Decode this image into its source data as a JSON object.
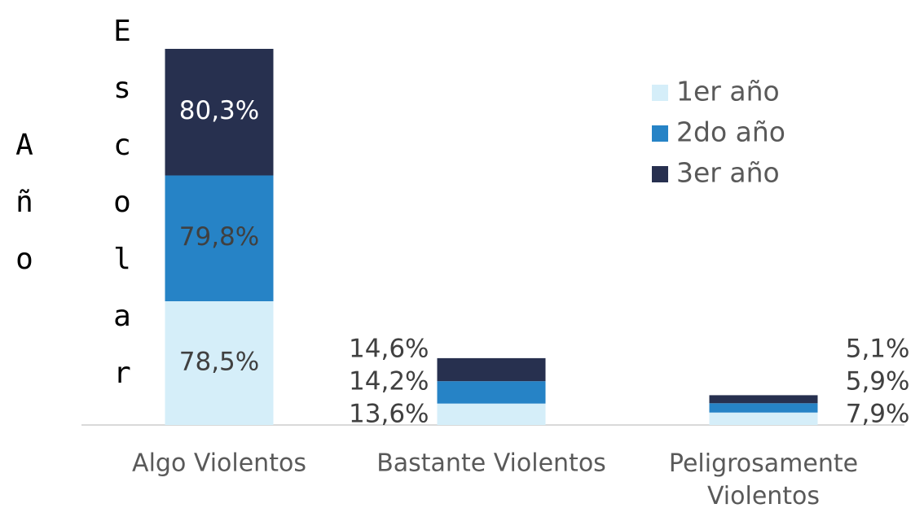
{
  "chart_data": {
    "type": "stacked_bar",
    "y_label": "Año Escolar",
    "categories": [
      "Algo Violentos",
      "Bastante Violentos",
      "Peligrosamente Violentos"
    ],
    "series": [
      {
        "name": "1er año",
        "color": "#d5eef9",
        "values": [
          78.5,
          13.6,
          7.9
        ],
        "value_labels": [
          "78,5%",
          "13,6%",
          "7,9%"
        ]
      },
      {
        "name": "2do año",
        "color": "#2683c6",
        "values": [
          79.8,
          14.2,
          5.9
        ],
        "value_labels": [
          "79,8%",
          "14,2%",
          "5,9%"
        ]
      },
      {
        "name": "3er año",
        "color": "#27304f",
        "values": [
          80.3,
          14.6,
          5.1
        ],
        "value_labels": [
          "80,3%",
          "14,6%",
          "5,1%"
        ]
      }
    ],
    "legend": "top-right"
  }
}
